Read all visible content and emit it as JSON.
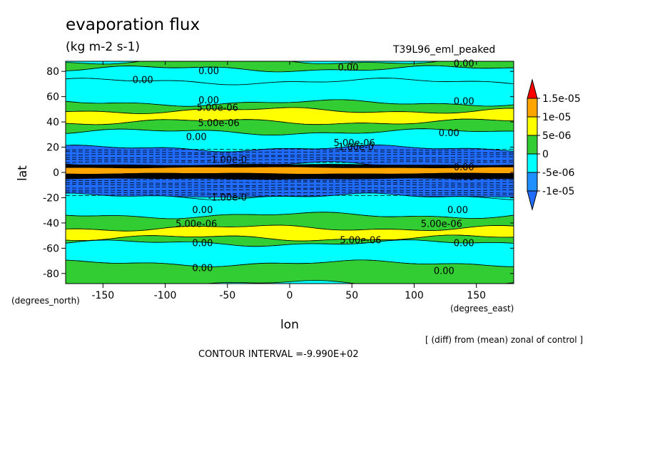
{
  "chart_data": {
    "type": "heatmap",
    "subtype": "filled contour map",
    "title": "evaporation flux",
    "units": "(kg m-2 s-1)",
    "run_label": "T39L96_eml_peaked",
    "xlabel": "lon",
    "ylabel": "lat",
    "x_units_note": "(degrees_east)",
    "y_units_note": "(degrees_north)",
    "xlim": [
      -180,
      180
    ],
    "ylim": [
      -88,
      88
    ],
    "x_ticks": [
      -150,
      -100,
      -50,
      0,
      50,
      100,
      150
    ],
    "x_tick_labels": [
      "-150",
      "-100",
      "-50",
      "0",
      "50",
      "100",
      "150"
    ],
    "y_ticks": [
      -80,
      -60,
      -40,
      -20,
      0,
      20,
      40,
      60,
      80
    ],
    "y_tick_labels": [
      "-80",
      "-60",
      "-40",
      "-20",
      "0",
      "20",
      "40",
      "60",
      "80"
    ],
    "colorbar": {
      "levels": [
        -1e-05,
        -5e-06,
        0,
        5e-06,
        1e-05,
        1.5e-05
      ],
      "labels": [
        "-1e-05",
        "-5e-06",
        "0",
        "5e-06",
        "1e-05",
        "1.5e-05"
      ],
      "colors": [
        "#1f6cff",
        "#1e90ff",
        "#00ffff",
        "#32cd32",
        "#ffff00",
        "#ffa500",
        "#ff0000"
      ]
    },
    "latitude_bands": [
      {
        "lat_from": 88,
        "lat_to": 82,
        "class": "0 to 5e-06"
      },
      {
        "lat_from": 82,
        "lat_to": 72,
        "class": "-5e-06 to 0"
      },
      {
        "lat_from": 72,
        "lat_to": 55,
        "class": "-5e-06 to 0"
      },
      {
        "lat_from": 55,
        "lat_to": 49,
        "class": "0 to 5e-06"
      },
      {
        "lat_from": 49,
        "lat_to": 40,
        "class": "5e-06 to 1e-05"
      },
      {
        "lat_from": 40,
        "lat_to": 32,
        "class": "0 to 5e-06"
      },
      {
        "lat_from": 32,
        "lat_to": 19,
        "class": "-5e-06 to 0"
      },
      {
        "lat_from": 19,
        "lat_to": 6,
        "class": "< -1e-05"
      },
      {
        "lat_from": 6,
        "lat_to": 4,
        "class": "> 1.5e-05 / strong gradient"
      },
      {
        "lat_from": 4,
        "lat_to": -1,
        "class": "1e-05 to 1.5e-05"
      },
      {
        "lat_from": -1,
        "lat_to": -5,
        "class": "> 1.5e-05 / strong gradient"
      },
      {
        "lat_from": -5,
        "lat_to": -19,
        "class": "< -1e-05"
      },
      {
        "lat_from": -19,
        "lat_to": -34,
        "class": "-5e-06 to 0"
      },
      {
        "lat_from": -34,
        "lat_to": -44,
        "class": "0 to 5e-06"
      },
      {
        "lat_from": -44,
        "lat_to": -52,
        "class": "5e-06 to 1e-05"
      },
      {
        "lat_from": -52,
        "lat_to": -56,
        "class": "0 to 5e-06"
      },
      {
        "lat_from": -56,
        "lat_to": -72,
        "class": "-5e-06 to 0"
      },
      {
        "lat_from": -72,
        "lat_to": -88,
        "class": "0 to 5e-06"
      }
    ],
    "contour_labels": [
      {
        "text": "0.00",
        "lon": -65,
        "lat": 80
      },
      {
        "text": "0.00",
        "lon": -118,
        "lat": 73
      },
      {
        "text": "0.00",
        "lon": 47,
        "lat": 83
      },
      {
        "text": "0.00",
        "lon": 140,
        "lat": 86
      },
      {
        "text": "0.00",
        "lon": -65,
        "lat": 57
      },
      {
        "text": "0.00",
        "lon": 140,
        "lat": 56
      },
      {
        "text": "5.00e-06",
        "lon": -58,
        "lat": 51
      },
      {
        "text": "5.00e-06",
        "lon": -57,
        "lat": 39
      },
      {
        "text": "0.00",
        "lon": -75,
        "lat": 28
      },
      {
        "text": "0.00",
        "lon": 128,
        "lat": 31
      },
      {
        "text": "5.00e-06",
        "lon": 52,
        "lat": 23
      },
      {
        "text": "-1.00e-0",
        "lon": 52,
        "lat": 20
      },
      {
        "text": "-1.00e-0",
        "lon": -50,
        "lat": 10
      },
      {
        "text": "0.00",
        "lon": 140,
        "lat": 4
      },
      {
        "text": "0.00",
        "lon": 140,
        "lat": -4
      },
      {
        "text": "-1.00e-0",
        "lon": -50,
        "lat": -20
      },
      {
        "text": "0.00",
        "lon": -70,
        "lat": -30
      },
      {
        "text": "0.00",
        "lon": 135,
        "lat": -30
      },
      {
        "text": "5.00e-06",
        "lon": -75,
        "lat": -41
      },
      {
        "text": "5.00e-06",
        "lon": 122,
        "lat": -41
      },
      {
        "text": "5.00e-06",
        "lon": 57,
        "lat": -54
      },
      {
        "text": "0.00",
        "lon": -70,
        "lat": -56
      },
      {
        "text": "0.00",
        "lon": 140,
        "lat": -56
      },
      {
        "text": "0.00",
        "lon": -70,
        "lat": -76
      },
      {
        "text": "0.00",
        "lon": 124,
        "lat": -78
      }
    ]
  },
  "notes": {
    "diff": "[ (diff) from (mean) zonal of control ]",
    "contour_interval": "CONTOUR INTERVAL =-9.990E+02"
  }
}
